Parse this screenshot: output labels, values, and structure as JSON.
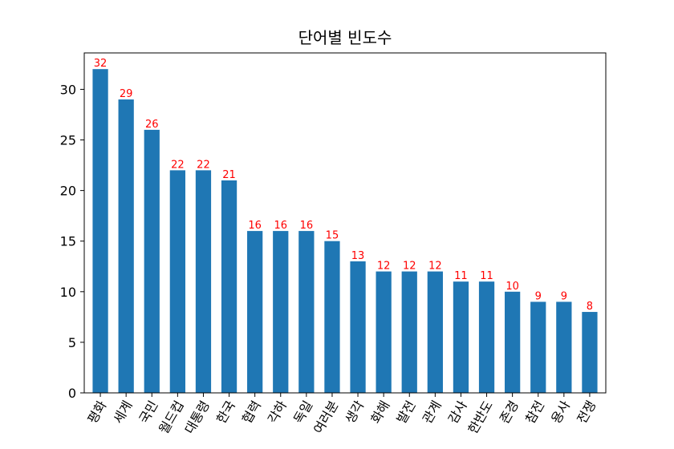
{
  "chart_data": {
    "type": "bar",
    "title": "단어별 빈도수",
    "xlabel": "",
    "ylabel": "",
    "categories": [
      "평화",
      "세계",
      "국민",
      "월드컵",
      "대통령",
      "한국",
      "협력",
      "각하",
      "독일",
      "여러분",
      "생각",
      "화해",
      "발전",
      "관계",
      "감사",
      "한반도",
      "존경",
      "참전",
      "용사",
      "전쟁"
    ],
    "values": [
      32,
      29,
      26,
      22,
      22,
      21,
      16,
      16,
      16,
      15,
      13,
      12,
      12,
      12,
      11,
      11,
      10,
      9,
      9,
      8
    ],
    "ylim": [
      0,
      33.6
    ],
    "yticks": [
      0,
      5,
      10,
      15,
      20,
      25,
      30
    ],
    "grid": false,
    "legend": "none",
    "bar_color": "#1f77b4",
    "label_color": "#ff0000"
  }
}
